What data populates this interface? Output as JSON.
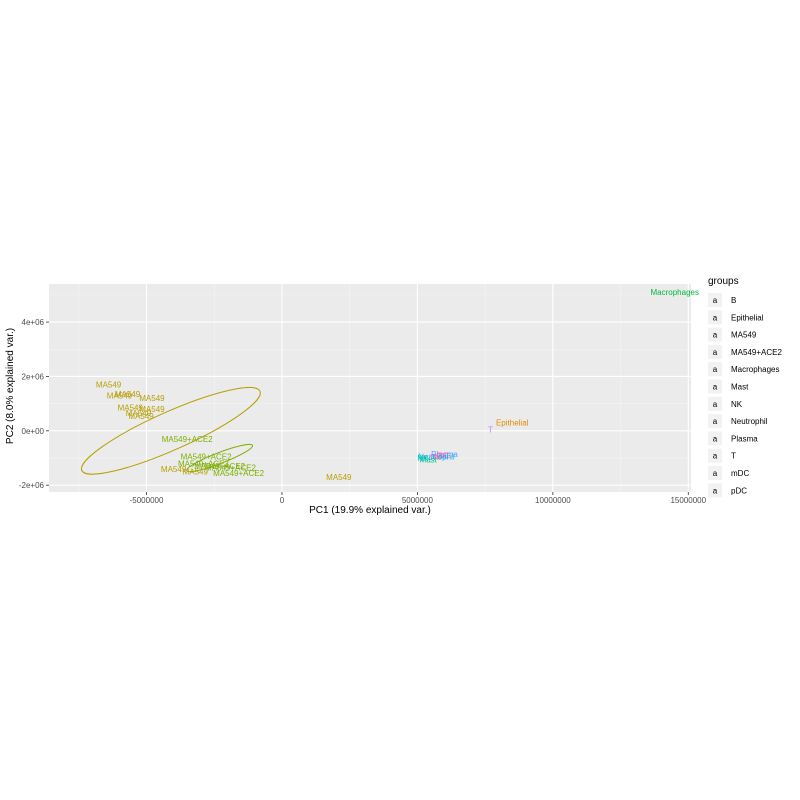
{
  "chart_data": {
    "type": "scatter",
    "xlabel": "PC1 (19.9% explained var.)",
    "ylabel": "PC2 (8.0% explained var.)",
    "xlim": [
      -8600000,
      15100000
    ],
    "ylim": [
      -2250000,
      5400000
    ],
    "x_ticks": [
      -5000000,
      0,
      5000000,
      10000000,
      15000000
    ],
    "x_tick_labels": [
      "-5000000",
      "0",
      "5000000",
      "10000000",
      "15000000"
    ],
    "y_ticks": [
      -2000000,
      0,
      2000000,
      4000000
    ],
    "y_tick_labels": [
      "-2e+06",
      "0e+00",
      "2e+06",
      "4e+06"
    ],
    "grid": true,
    "legend": {
      "title": "groups",
      "position": "right",
      "symbol": "a",
      "entries": [
        {
          "name": "B",
          "color": "#F8766D"
        },
        {
          "name": "Epithelial",
          "color": "#DE8C00"
        },
        {
          "name": "MA549",
          "color": "#B79F00"
        },
        {
          "name": "MA549+ACE2",
          "color": "#7CAE00"
        },
        {
          "name": "Macrophages",
          "color": "#00BA38"
        },
        {
          "name": "Mast",
          "color": "#00C08B"
        },
        {
          "name": "NK",
          "color": "#00BFC4"
        },
        {
          "name": "Neutrophil",
          "color": "#00B4F0"
        },
        {
          "name": "Plasma",
          "color": "#619CFF"
        },
        {
          "name": "T",
          "color": "#C77CFF"
        },
        {
          "name": "mDC",
          "color": "#F564E3"
        },
        {
          "name": "pDC",
          "color": "#FF64B0"
        }
      ]
    },
    "points": [
      {
        "label": "MA549",
        "group": "MA549",
        "x": -6400000,
        "y": 1700000
      },
      {
        "label": "MA549",
        "group": "MA549",
        "x": -6000000,
        "y": 1300000
      },
      {
        "label": "MA549",
        "group": "MA549",
        "x": -5700000,
        "y": 1350000
      },
      {
        "label": "MA549",
        "group": "MA549",
        "x": -4800000,
        "y": 1200000
      },
      {
        "label": "MA549",
        "group": "MA549",
        "x": -5600000,
        "y": 850000
      },
      {
        "label": "MA549",
        "group": "MA549",
        "x": -4800000,
        "y": 800000
      },
      {
        "label": "MA549",
        "group": "MA549",
        "x": -5300000,
        "y": 650000
      },
      {
        "label": "MA549",
        "group": "MA549",
        "x": -5200000,
        "y": 550000
      },
      {
        "label": "MA549",
        "group": "MA549",
        "x": -4000000,
        "y": -1400000
      },
      {
        "label": "MA549",
        "group": "MA549",
        "x": -3200000,
        "y": -1500000
      },
      {
        "label": "MA549",
        "group": "MA549",
        "x": 2100000,
        "y": -1700000
      },
      {
        "label": "MA549+ACE2",
        "group": "MA549+ACE2",
        "x": -3500000,
        "y": -300000
      },
      {
        "label": "MA549+ACE2",
        "group": "MA549+ACE2",
        "x": -2800000,
        "y": -950000
      },
      {
        "label": "MA549+ACE2",
        "group": "MA549+ACE2",
        "x": -2900000,
        "y": -1200000
      },
      {
        "label": "MA549+ACE2",
        "group": "MA549+ACE2",
        "x": -1900000,
        "y": -1350000
      },
      {
        "label": "MA549+ACE2",
        "group": "MA549+ACE2",
        "x": -1600000,
        "y": -1550000
      },
      {
        "label": "MA549+ACE2",
        "group": "MA549+ACE2",
        "x": -2300000,
        "y": -1300000
      },
      {
        "label": "Macrophages",
        "group": "Macrophages",
        "x": 14500000,
        "y": 5100000
      },
      {
        "label": "Epithelial",
        "group": "Epithelial",
        "x": 8500000,
        "y": 300000
      },
      {
        "label": "T",
        "group": "T",
        "x": 7700000,
        "y": 50000
      },
      {
        "label": "Plasma",
        "group": "Plasma",
        "x": 6000000,
        "y": -850000
      },
      {
        "label": "pDC",
        "group": "pDC",
        "x": 5900000,
        "y": -900000
      },
      {
        "label": "B",
        "group": "B",
        "x": 5800000,
        "y": -950000
      },
      {
        "label": "mDC",
        "group": "mDC",
        "x": 5800000,
        "y": -900000
      },
      {
        "label": "Neutrophil",
        "group": "Neutrophil",
        "x": 5700000,
        "y": -950000
      },
      {
        "label": "NK",
        "group": "NK",
        "x": 5200000,
        "y": -1000000
      },
      {
        "label": "Mast",
        "group": "Mast",
        "x": 5400000,
        "y": -1050000
      }
    ],
    "ellipses": [
      {
        "group": "MA549",
        "cx": -4100000,
        "cy": 0,
        "rx": 3600000,
        "ry": 700000,
        "angle_deg": -24
      },
      {
        "group": "MA549+ACE2",
        "cx": -2300000,
        "cy": -1000000,
        "rx": 1300000,
        "ry": 200000,
        "angle_deg": -21
      }
    ]
  }
}
